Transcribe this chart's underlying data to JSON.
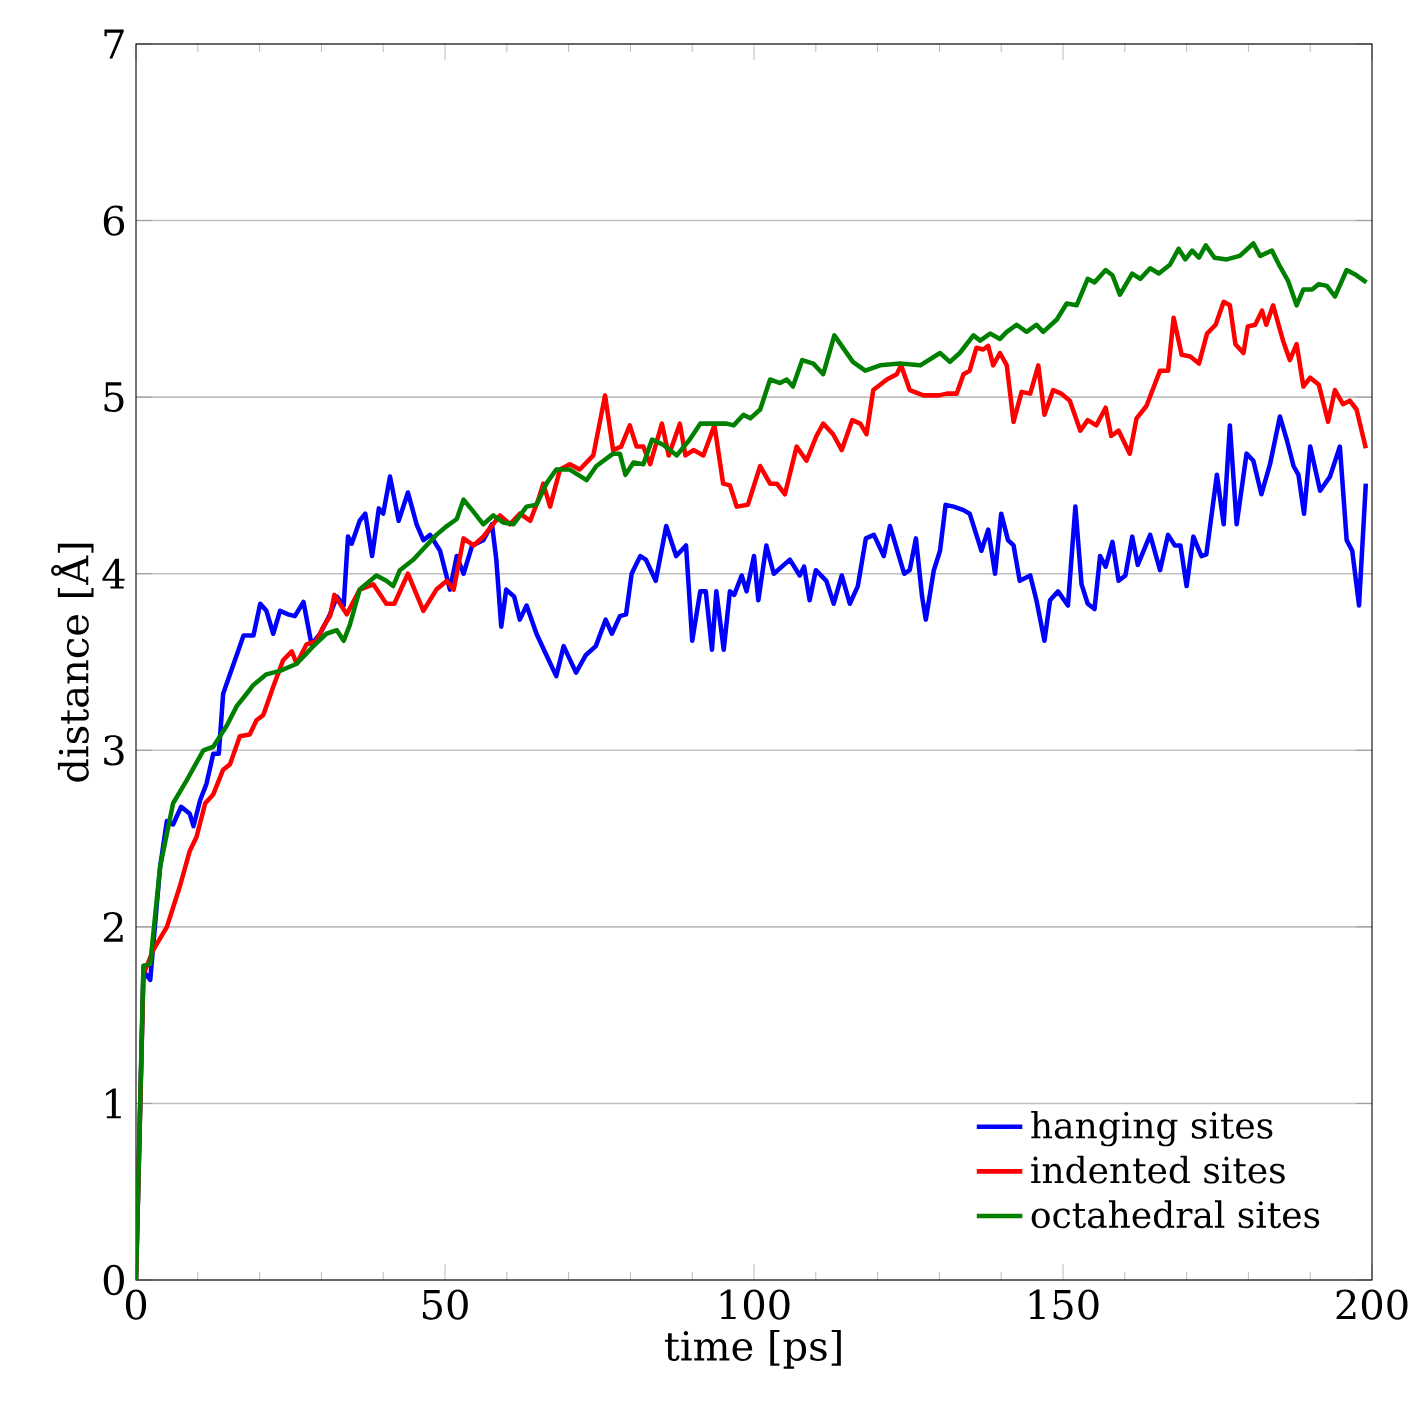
{
  "chart_data": {
    "type": "line",
    "xlabel": "time [ps]",
    "ylabel": "distance [Å]",
    "xlim": [
      0,
      200
    ],
    "ylim": [
      0,
      7
    ],
    "xticks": [
      0,
      50,
      100,
      150,
      200
    ],
    "yticks": [
      0,
      1,
      2,
      3,
      4,
      5,
      6,
      7
    ],
    "grid": "y",
    "legend": "bottom right",
    "series": [
      {
        "name": "hanging sites",
        "color": "#0000ff",
        "x": [
          0,
          1.2,
          2.3,
          3.9,
          5,
          6,
          7.3,
          8.7,
          9.3,
          10.4,
          11.4,
          12.5,
          13.4,
          14.1,
          15.2,
          16.3,
          17.4,
          19,
          20.1,
          21.1,
          22.2,
          23.3,
          24.6,
          25.7,
          27.1,
          28.4,
          29.8,
          31.4,
          32.5,
          33.6,
          34.3,
          34.9,
          36.2,
          37.1,
          38.2,
          39.3,
          40,
          41.1,
          42.5,
          44,
          45.4,
          46.5,
          47.6,
          49.2,
          50.8,
          51.9,
          53,
          54.4,
          56.2,
          57.6,
          58.3,
          59.1,
          59.9,
          61.2,
          62.1,
          63.2,
          64.8,
          66.4,
          68,
          69.2,
          71.2,
          72.8,
          74.4,
          76,
          77,
          78.3,
          79.3,
          80.2,
          81.6,
          82.5,
          84.1,
          85.8,
          87.4,
          89,
          90,
          91.3,
          92.2,
          93.2,
          93.9,
          95.1,
          96.1,
          96.8,
          98,
          98.8,
          100,
          100.7,
          102,
          103.2,
          105.8,
          107.4,
          108.1,
          109,
          110,
          111.7,
          112.9,
          114.2,
          115.5,
          116.8,
          118.1,
          119.4,
          121,
          122,
          124.3,
          125.2,
          126.2,
          127.2,
          127.8,
          129.1,
          130.1,
          131,
          132.3,
          133.9,
          134.9,
          136.8,
          137.9,
          139,
          140,
          141.1,
          142,
          143,
          144.7,
          145.7,
          147,
          147.9,
          149.2,
          150.8,
          152,
          153,
          154,
          155.1,
          156,
          156.9,
          158,
          159,
          160.1,
          161.2,
          162.1,
          164.1,
          165.7,
          167,
          168.1,
          169,
          170,
          171.1,
          172.4,
          173.2,
          174.9,
          176,
          177,
          178.1,
          179.7,
          180.8,
          182.1,
          183.5,
          185.1,
          186.2,
          187.3,
          188.1,
          189,
          190,
          191.6,
          193.2,
          194.8,
          195.9,
          196.8,
          197.9,
          199
        ],
        "values": [
          0,
          1.75,
          1.7,
          2.34,
          2.6,
          2.58,
          2.68,
          2.64,
          2.57,
          2.72,
          2.81,
          2.98,
          2.98,
          3.32,
          3.43,
          3.54,
          3.65,
          3.65,
          3.83,
          3.79,
          3.66,
          3.79,
          3.77,
          3.76,
          3.84,
          3.6,
          3.66,
          3.77,
          3.87,
          3.82,
          4.21,
          4.17,
          4.3,
          4.34,
          4.1,
          4.37,
          4.34,
          4.55,
          4.3,
          4.46,
          4.28,
          4.19,
          4.22,
          4.13,
          3.91,
          4.1,
          4.0,
          4.16,
          4.19,
          4.28,
          4.08,
          3.7,
          3.91,
          3.87,
          3.74,
          3.82,
          3.66,
          3.54,
          3.42,
          3.59,
          3.44,
          3.54,
          3.59,
          3.74,
          3.66,
          3.76,
          3.77,
          4.0,
          4.1,
          4.08,
          3.96,
          4.27,
          4.1,
          4.16,
          3.62,
          3.9,
          3.9,
          3.57,
          3.9,
          3.57,
          3.9,
          3.88,
          3.99,
          3.9,
          4.1,
          3.85,
          4.16,
          4.0,
          4.08,
          3.99,
          4.04,
          3.85,
          4.02,
          3.96,
          3.83,
          3.99,
          3.83,
          3.93,
          4.2,
          4.22,
          4.1,
          4.27,
          4.0,
          4.02,
          4.2,
          3.87,
          3.74,
          4.02,
          4.13,
          4.39,
          4.38,
          4.36,
          4.34,
          4.13,
          4.25,
          4.0,
          4.34,
          4.19,
          4.16,
          3.96,
          3.99,
          3.85,
          3.62,
          3.85,
          3.9,
          3.82,
          4.38,
          3.94,
          3.83,
          3.8,
          4.1,
          4.04,
          4.18,
          3.96,
          3.99,
          4.21,
          4.05,
          4.22,
          4.02,
          4.22,
          4.16,
          4.16,
          3.93,
          4.21,
          4.1,
          4.11,
          4.56,
          4.28,
          4.84,
          4.28,
          4.68,
          4.64,
          4.45,
          4.62,
          4.89,
          4.76,
          4.61,
          4.56,
          4.34,
          4.72,
          4.47,
          4.55,
          4.72,
          4.19,
          4.13,
          3.82,
          4.51
        ]
      },
      {
        "name": "indented sites",
        "color": "#ff0000",
        "x": [
          0,
          1.2,
          2.8,
          5,
          7.1,
          8.7,
          9.8,
          11.2,
          12.5,
          14.1,
          15.2,
          16.8,
          18.4,
          19.5,
          20.6,
          22.2,
          23.8,
          25.2,
          26,
          27.6,
          29.2,
          30.3,
          31.4,
          32.1,
          34.1,
          36.2,
          38.4,
          40.5,
          41.8,
          44,
          46.5,
          48.6,
          50.3,
          51.4,
          53,
          54.6,
          56.2,
          58.9,
          60.5,
          62.1,
          63.8,
          65.1,
          65.9,
          67,
          68.6,
          70.2,
          71.8,
          74,
          75.9,
          77.2,
          78.5,
          79.9,
          81,
          82.1,
          83.2,
          85.1,
          86.2,
          88,
          88.9,
          90.2,
          91.8,
          93.6,
          95,
          96.1,
          97.2,
          99,
          101,
          102.6,
          103.7,
          105,
          106.9,
          108.5,
          110.1,
          111.2,
          112.8,
          114.2,
          115.9,
          117.2,
          118.2,
          119.3,
          121.5,
          123.1,
          123.8,
          125.2,
          127.4,
          129.9,
          131.2,
          132.8,
          133.9,
          134.9,
          136,
          137.1,
          137.9,
          138.7,
          139.8,
          140.9,
          142,
          143.3,
          144.7,
          146,
          147,
          148.4,
          149.7,
          151.1,
          152.8,
          154,
          155.4,
          156.9,
          157.8,
          159,
          160.8,
          161.9,
          163.5,
          165.7,
          167,
          167.9,
          169.2,
          170.6,
          172,
          173.3,
          174.7,
          176,
          177,
          177.9,
          179.2,
          179.9,
          181.1,
          182.2,
          182.9,
          184,
          185.6,
          186.7,
          187.8,
          188.9,
          190,
          191.4,
          192.9,
          194,
          195.3,
          196.4,
          197.5,
          199
        ],
        "values": [
          0,
          1.73,
          1.87,
          2.0,
          2.23,
          2.43,
          2.51,
          2.7,
          2.75,
          2.89,
          2.92,
          3.08,
          3.09,
          3.17,
          3.2,
          3.36,
          3.51,
          3.56,
          3.49,
          3.6,
          3.62,
          3.7,
          3.76,
          3.88,
          3.77,
          3.91,
          3.94,
          3.83,
          3.83,
          4.0,
          3.79,
          3.91,
          3.96,
          3.91,
          4.2,
          4.16,
          4.21,
          4.33,
          4.28,
          4.34,
          4.3,
          4.42,
          4.51,
          4.38,
          4.59,
          4.62,
          4.59,
          4.67,
          5.01,
          4.7,
          4.72,
          4.84,
          4.72,
          4.72,
          4.62,
          4.85,
          4.67,
          4.85,
          4.67,
          4.7,
          4.67,
          4.84,
          4.51,
          4.5,
          4.38,
          4.39,
          4.61,
          4.51,
          4.51,
          4.45,
          4.72,
          4.64,
          4.78,
          4.85,
          4.79,
          4.7,
          4.87,
          4.85,
          4.79,
          5.04,
          5.1,
          5.13,
          5.18,
          5.04,
          5.01,
          5.01,
          5.02,
          5.02,
          5.13,
          5.15,
          5.28,
          5.27,
          5.29,
          5.18,
          5.25,
          5.18,
          4.86,
          5.03,
          5.02,
          5.18,
          4.9,
          5.04,
          5.02,
          4.98,
          4.81,
          4.87,
          4.84,
          4.94,
          4.78,
          4.81,
          4.68,
          4.88,
          4.95,
          5.15,
          5.15,
          5.45,
          5.24,
          5.23,
          5.19,
          5.36,
          5.41,
          5.54,
          5.52,
          5.3,
          5.25,
          5.4,
          5.41,
          5.49,
          5.41,
          5.52,
          5.32,
          5.21,
          5.3,
          5.06,
          5.11,
          5.07,
          4.86,
          5.04,
          4.96,
          4.98,
          4.93,
          4.71
        ]
      },
      {
        "name": "octahedral sites",
        "color": "#008000",
        "x": [
          0,
          1.2,
          2.3,
          3.9,
          6,
          8.2,
          10.9,
          12.5,
          14.7,
          16.3,
          17.9,
          19,
          21.1,
          23.3,
          26,
          28.7,
          30.8,
          32.5,
          33.6,
          34.6,
          36.2,
          38.9,
          40.5,
          41.6,
          42.7,
          44.9,
          47,
          48.6,
          50.3,
          51.9,
          53,
          54.4,
          56.2,
          57.8,
          59.4,
          61.1,
          63.2,
          64.8,
          66.4,
          68,
          70.2,
          72.9,
          74.5,
          77.2,
          78.3,
          79.2,
          80.5,
          82.1,
          83.5,
          85.3,
          87.5,
          89.6,
          91.3,
          93.4,
          95.6,
          96.7,
          98.3,
          99.4,
          101,
          102.6,
          104.2,
          105.3,
          106.3,
          107.8,
          109.6,
          111.2,
          113,
          116,
          118,
          120.4,
          123.6,
          126.9,
          130.1,
          131.7,
          133.3,
          135.5,
          136.6,
          138.2,
          139.8,
          140.9,
          142.5,
          144.1,
          145.7,
          146.8,
          149,
          150.6,
          152.2,
          154,
          155.1,
          156.9,
          158,
          159.2,
          161.2,
          162.5,
          164.1,
          165.5,
          167.3,
          168.7,
          169.8,
          170.9,
          172,
          173.1,
          174.5,
          176.5,
          178.6,
          180.8,
          181.9,
          183.8,
          185.1,
          186.4,
          187.8,
          188.9,
          190.3,
          191.4,
          192.7,
          194,
          195.9,
          197.5,
          199.1
        ],
        "values": [
          0,
          1.78,
          1.79,
          2.34,
          2.7,
          2.83,
          3.0,
          3.02,
          3.14,
          3.25,
          3.32,
          3.37,
          3.43,
          3.45,
          3.49,
          3.59,
          3.66,
          3.68,
          3.62,
          3.71,
          3.91,
          3.99,
          3.96,
          3.93,
          4.02,
          4.08,
          4.16,
          4.22,
          4.27,
          4.31,
          4.42,
          4.36,
          4.28,
          4.33,
          4.29,
          4.28,
          4.38,
          4.39,
          4.51,
          4.59,
          4.59,
          4.53,
          4.61,
          4.68,
          4.68,
          4.56,
          4.63,
          4.62,
          4.76,
          4.73,
          4.67,
          4.76,
          4.85,
          4.85,
          4.85,
          4.84,
          4.9,
          4.88,
          4.93,
          5.1,
          5.08,
          5.1,
          5.06,
          5.21,
          5.19,
          5.13,
          5.35,
          5.2,
          5.15,
          5.18,
          5.19,
          5.18,
          5.25,
          5.2,
          5.25,
          5.35,
          5.32,
          5.36,
          5.33,
          5.37,
          5.41,
          5.37,
          5.41,
          5.37,
          5.44,
          5.53,
          5.52,
          5.67,
          5.65,
          5.72,
          5.69,
          5.58,
          5.7,
          5.67,
          5.73,
          5.7,
          5.75,
          5.84,
          5.78,
          5.83,
          5.79,
          5.86,
          5.79,
          5.78,
          5.8,
          5.87,
          5.8,
          5.83,
          5.74,
          5.66,
          5.52,
          5.61,
          5.61,
          5.64,
          5.63,
          5.57,
          5.72,
          5.69,
          5.65
        ]
      }
    ]
  }
}
